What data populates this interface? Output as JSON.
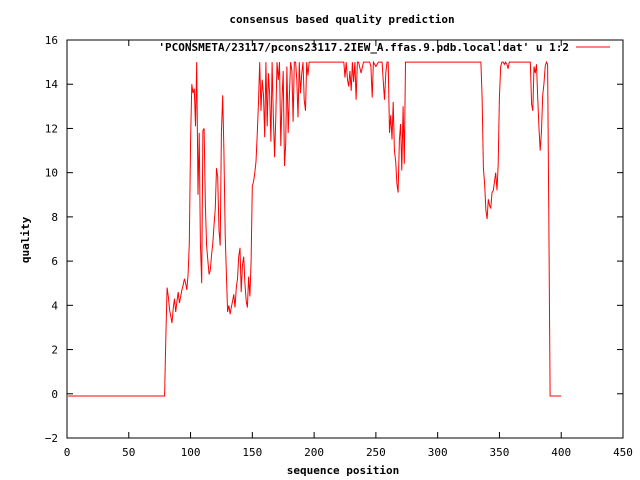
{
  "chart_data": {
    "type": "line",
    "title": "consensus based quality prediction",
    "xlabel": "sequence position",
    "ylabel": "quality",
    "xlim": [
      0,
      450
    ],
    "ylim": [
      -2,
      16
    ],
    "xticks": [
      0,
      50,
      100,
      150,
      200,
      250,
      300,
      350,
      400,
      450
    ],
    "yticks": [
      -2,
      0,
      2,
      4,
      6,
      8,
      10,
      12,
      14,
      16
    ],
    "grid": false,
    "legend_position": "top-right",
    "series": [
      {
        "name": "'PCONSMETA/23117/pcons23117.2IEW_A.ffas.9.pdb.local.dat' u 1:2",
        "color": "#ff0000",
        "points": [
          [
            1,
            -0.1
          ],
          [
            40,
            -0.1
          ],
          [
            79,
            -0.1
          ],
          [
            80,
            2.5
          ],
          [
            81,
            4.8
          ],
          [
            82,
            4.4
          ],
          [
            83,
            3.8
          ],
          [
            84,
            3.5
          ],
          [
            85,
            3.2
          ],
          [
            86,
            3.9
          ],
          [
            87,
            4.3
          ],
          [
            88,
            3.7
          ],
          [
            89,
            4.2
          ],
          [
            90,
            4.6
          ],
          [
            91,
            4.1
          ],
          [
            92,
            4.4
          ],
          [
            93,
            4.7
          ],
          [
            94,
            4.9
          ],
          [
            95,
            5.2
          ],
          [
            96,
            5.0
          ],
          [
            97,
            4.7
          ],
          [
            98,
            5.4
          ],
          [
            99,
            6.8
          ],
          [
            100,
            11.5
          ],
          [
            101,
            14.0
          ],
          [
            102,
            13.6
          ],
          [
            103,
            13.8
          ],
          [
            104,
            12.1
          ],
          [
            105,
            15.0
          ],
          [
            106,
            9.0
          ],
          [
            107,
            11.8
          ],
          [
            108,
            6.8
          ],
          [
            109,
            5.0
          ],
          [
            110,
            11.9
          ],
          [
            111,
            12.0
          ],
          [
            112,
            8.5
          ],
          [
            113,
            6.7
          ],
          [
            114,
            6.0
          ],
          [
            115,
            5.4
          ],
          [
            116,
            5.6
          ],
          [
            117,
            6.3
          ],
          [
            118,
            6.8
          ],
          [
            119,
            7.6
          ],
          [
            120,
            8.4
          ],
          [
            121,
            10.2
          ],
          [
            122,
            9.8
          ],
          [
            123,
            7.4
          ],
          [
            124,
            6.7
          ],
          [
            125,
            11.8
          ],
          [
            126,
            13.5
          ],
          [
            127,
            11.0
          ],
          [
            128,
            7.2
          ],
          [
            129,
            5.4
          ],
          [
            130,
            3.7
          ],
          [
            131,
            4.0
          ],
          [
            132,
            3.6
          ],
          [
            133,
            3.9
          ],
          [
            134,
            4.2
          ],
          [
            135,
            4.5
          ],
          [
            136,
            3.9
          ],
          [
            137,
            4.8
          ],
          [
            138,
            5.2
          ],
          [
            139,
            6.2
          ],
          [
            140,
            6.6
          ],
          [
            141,
            4.6
          ],
          [
            142,
            5.8
          ],
          [
            143,
            6.2
          ],
          [
            144,
            5.0
          ],
          [
            145,
            4.2
          ],
          [
            146,
            3.9
          ],
          [
            147,
            5.3
          ],
          [
            148,
            4.4
          ],
          [
            149,
            6.0
          ],
          [
            150,
            9.4
          ],
          [
            151,
            9.6
          ],
          [
            152,
            10.0
          ],
          [
            153,
            10.5
          ],
          [
            154,
            11.8
          ],
          [
            155,
            13.2
          ],
          [
            156,
            15.0
          ],
          [
            157,
            12.8
          ],
          [
            158,
            14.2
          ],
          [
            159,
            13.5
          ],
          [
            160,
            11.6
          ],
          [
            161,
            15.0
          ],
          [
            162,
            12.1
          ],
          [
            163,
            14.5
          ],
          [
            164,
            13.6
          ],
          [
            165,
            11.4
          ],
          [
            166,
            15.0
          ],
          [
            167,
            12.6
          ],
          [
            168,
            10.7
          ],
          [
            169,
            12.5
          ],
          [
            170,
            15.0
          ],
          [
            171,
            14.2
          ],
          [
            172,
            15.0
          ],
          [
            173,
            11.2
          ],
          [
            174,
            13.3
          ],
          [
            175,
            14.6
          ],
          [
            176,
            10.3
          ],
          [
            177,
            11.3
          ],
          [
            178,
            14.8
          ],
          [
            179,
            11.8
          ],
          [
            180,
            13.5
          ],
          [
            181,
            15.0
          ],
          [
            182,
            14.6
          ],
          [
            183,
            12.3
          ],
          [
            184,
            15.0
          ],
          [
            185,
            15.0
          ],
          [
            186,
            14.2
          ],
          [
            187,
            12.5
          ],
          [
            188,
            15.0
          ],
          [
            189,
            13.6
          ],
          [
            190,
            14.5
          ],
          [
            191,
            15.0
          ],
          [
            192,
            13.3
          ],
          [
            193,
            12.8
          ],
          [
            194,
            15.0
          ],
          [
            195,
            14.4
          ],
          [
            196,
            15.0
          ],
          [
            200,
            15.0
          ],
          [
            210,
            15.0
          ],
          [
            220,
            15.0
          ],
          [
            224,
            15.0
          ],
          [
            225,
            14.3
          ],
          [
            226,
            15.0
          ],
          [
            227,
            14.2
          ],
          [
            228,
            13.9
          ],
          [
            229,
            14.6
          ],
          [
            230,
            13.7
          ],
          [
            231,
            15.0
          ],
          [
            232,
            14.1
          ],
          [
            233,
            15.0
          ],
          [
            234,
            13.3
          ],
          [
            235,
            15.0
          ],
          [
            236,
            15.0
          ],
          [
            238,
            14.5
          ],
          [
            240,
            15.0
          ],
          [
            245,
            15.0
          ],
          [
            246,
            14.8
          ],
          [
            247,
            13.4
          ],
          [
            248,
            15.0
          ],
          [
            250,
            14.8
          ],
          [
            252,
            15.0
          ],
          [
            255,
            15.0
          ],
          [
            256,
            14.1
          ],
          [
            257,
            13.3
          ],
          [
            258,
            14.5
          ],
          [
            259,
            15.0
          ],
          [
            260,
            15.0
          ],
          [
            261,
            11.8
          ],
          [
            262,
            12.6
          ],
          [
            263,
            11.5
          ],
          [
            264,
            13.2
          ],
          [
            265,
            11.0
          ],
          [
            266,
            10.5
          ],
          [
            267,
            9.5
          ],
          [
            268,
            9.1
          ],
          [
            269,
            11.5
          ],
          [
            270,
            12.2
          ],
          [
            271,
            10.1
          ],
          [
            272,
            13.0
          ],
          [
            273,
            10.4
          ],
          [
            274,
            15.0
          ],
          [
            276,
            15.0
          ],
          [
            280,
            15.0
          ],
          [
            290,
            15.0
          ],
          [
            300,
            15.0
          ],
          [
            310,
            15.0
          ],
          [
            320,
            15.0
          ],
          [
            330,
            15.0
          ],
          [
            335,
            15.0
          ],
          [
            336,
            13.4
          ],
          [
            337,
            10.2
          ],
          [
            338,
            9.5
          ],
          [
            339,
            8.3
          ],
          [
            340,
            7.9
          ],
          [
            341,
            8.8
          ],
          [
            342,
            8.5
          ],
          [
            343,
            8.4
          ],
          [
            344,
            9.1
          ],
          [
            345,
            9.2
          ],
          [
            346,
            9.6
          ],
          [
            347,
            10.0
          ],
          [
            348,
            9.2
          ],
          [
            349,
            10.4
          ],
          [
            350,
            13.4
          ],
          [
            351,
            14.8
          ],
          [
            352,
            15.0
          ],
          [
            353,
            15.0
          ],
          [
            354,
            14.9
          ],
          [
            355,
            15.0
          ],
          [
            356,
            14.9
          ],
          [
            357,
            14.7
          ],
          [
            358,
            15.0
          ],
          [
            360,
            15.0
          ],
          [
            370,
            15.0
          ],
          [
            375,
            15.0
          ],
          [
            376,
            13.1
          ],
          [
            377,
            12.8
          ],
          [
            378,
            14.8
          ],
          [
            379,
            14.5
          ],
          [
            380,
            14.9
          ],
          [
            381,
            13.4
          ],
          [
            382,
            12.0
          ],
          [
            383,
            11.0
          ],
          [
            384,
            11.9
          ],
          [
            385,
            13.5
          ],
          [
            386,
            14.0
          ],
          [
            387,
            14.8
          ],
          [
            388,
            15.0
          ],
          [
            389,
            14.9
          ],
          [
            390,
            7.5
          ],
          [
            391,
            -0.1
          ],
          [
            395,
            -0.1
          ],
          [
            400,
            -0.1
          ]
        ]
      }
    ]
  }
}
